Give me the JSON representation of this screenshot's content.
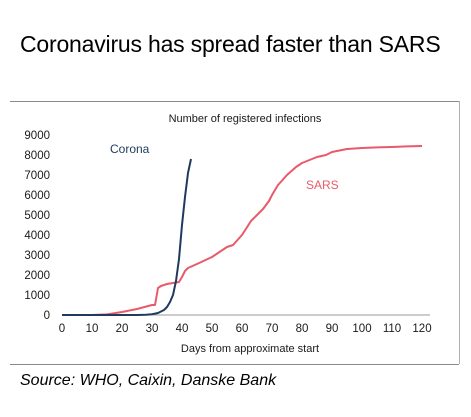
{
  "heading": "Coronavirus has spread faster than SARS",
  "source": "Source: WHO, Caixin, Danske Bank",
  "chart_data": {
    "type": "line",
    "title": "Number of registered infections",
    "xlabel": "Days from approximate start",
    "ylabel": "",
    "xlim": [
      0,
      122
    ],
    "ylim": [
      0,
      9000
    ],
    "xticks": [
      0,
      10,
      20,
      30,
      40,
      50,
      60,
      70,
      80,
      90,
      100,
      110,
      120
    ],
    "yticks": [
      0,
      1000,
      2000,
      3000,
      4000,
      5000,
      6000,
      7000,
      8000,
      9000
    ],
    "grid": false,
    "legend": "inline labels",
    "series": [
      {
        "name": "Corona",
        "color": "#1f3a5c",
        "x": [
          0,
          10,
          20,
          25,
          28,
          30,
          32,
          34,
          35,
          36,
          37,
          38,
          39,
          40,
          41,
          42,
          43
        ],
        "y": [
          0,
          0,
          0,
          0,
          10,
          40,
          100,
          250,
          400,
          650,
          1000,
          1700,
          2800,
          4500,
          5900,
          7100,
          7800
        ]
      },
      {
        "name": "SARS",
        "color": "#e85a6b",
        "x": [
          0,
          10,
          15,
          20,
          25,
          30,
          31,
          32,
          33,
          35,
          37,
          39,
          40,
          41,
          42,
          45,
          50,
          55,
          57,
          60,
          63,
          65,
          67,
          69,
          70,
          72,
          75,
          78,
          80,
          85,
          88,
          90,
          95,
          100,
          105,
          110,
          115,
          120
        ],
        "y": [
          0,
          0,
          30,
          150,
          300,
          500,
          500,
          1350,
          1450,
          1550,
          1600,
          1650,
          1900,
          2200,
          2350,
          2550,
          2900,
          3400,
          3500,
          4000,
          4700,
          5000,
          5300,
          5700,
          6000,
          6500,
          7000,
          7400,
          7600,
          7900,
          8000,
          8150,
          8300,
          8350,
          8380,
          8400,
          8430,
          8450
        ]
      }
    ],
    "annotations": [
      {
        "text": "Corona",
        "series": "Corona"
      },
      {
        "text": "SARS",
        "series": "SARS"
      }
    ]
  }
}
